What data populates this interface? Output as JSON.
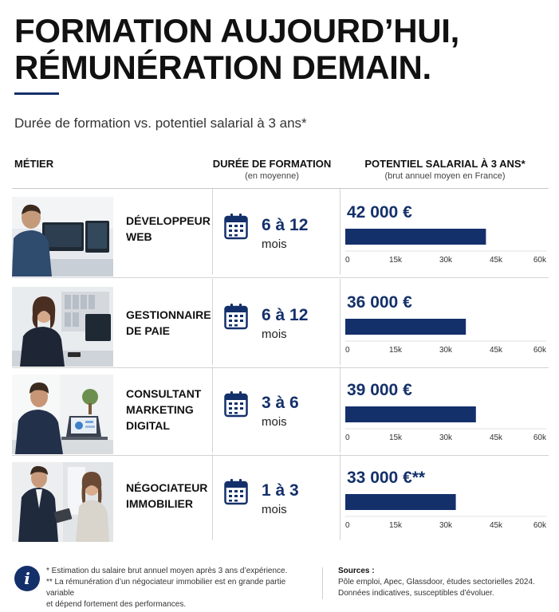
{
  "header": {
    "title_line1": "FORMATION AUJOURD’HUI,",
    "title_line2": "RÉMUNÉRATION DEMAIN.",
    "subtitle": "Durée de formation vs. potentiel salarial à 3 ans*"
  },
  "columns": {
    "metier": "MÉTIER",
    "duree": "DURÉE DE FORMATION",
    "duree_sub": "(en moyenne)",
    "salaire": "POTENTIEL SALARIAL À 3 ANS*",
    "salaire_sub": "(brut annuel moyen en France)"
  },
  "rows": [
    {
      "job_line1": "DÉVELOPPEUR",
      "job_line2": "WEB",
      "job_line3": "",
      "duration": "6 à 12",
      "unit": "mois",
      "salary": "42 000 €"
    },
    {
      "job_line1": "GESTIONNAIRE",
      "job_line2": "DE PAIE",
      "job_line3": "",
      "duration": "6 à 12",
      "unit": "mois",
      "salary": "36 000 €"
    },
    {
      "job_line1": "CONSULTANT",
      "job_line2": "MARKETING",
      "job_line3": "DIGITAL",
      "duration": "3 à 6",
      "unit": "mois",
      "salary": "39 000 €"
    },
    {
      "job_line1": "NÉGOCIATEUR",
      "job_line2": "IMMOBILIER",
      "job_line3": "",
      "duration": "1 à 3",
      "unit": "mois",
      "salary": "33 000 €**"
    }
  ],
  "chart_data": {
    "type": "bar",
    "orientation": "horizontal",
    "categories": [
      "Développeur web",
      "Gestionnaire de paie",
      "Consultant marketing digital",
      "Négociateur immobilier"
    ],
    "values": [
      42000,
      36000,
      39000,
      33000
    ],
    "xlim": [
      0,
      60000
    ],
    "ticks": [
      "0",
      "15k",
      "30k",
      "45k",
      "60k"
    ],
    "bar_color": "#14306b",
    "grid": false
  },
  "footer": {
    "info_icon": "i",
    "note1": "* Estimation du salaire brut annuel moyen après 3 ans d’expérience.",
    "note2": "** La rémunération d’un négociateur immobilier est en grande partie variable",
    "note3": "et dépend fortement des performances.",
    "sources_title": "Sources :",
    "sources_line1": "Pôle emploi, Apec, Glassdoor, études sectorielles 2024.",
    "sources_line2": "Données indicatives, susceptibles d’évoluer."
  },
  "colors": {
    "accent": "#14306b"
  },
  "icons": [
    "calendar-icon",
    "info-icon"
  ]
}
